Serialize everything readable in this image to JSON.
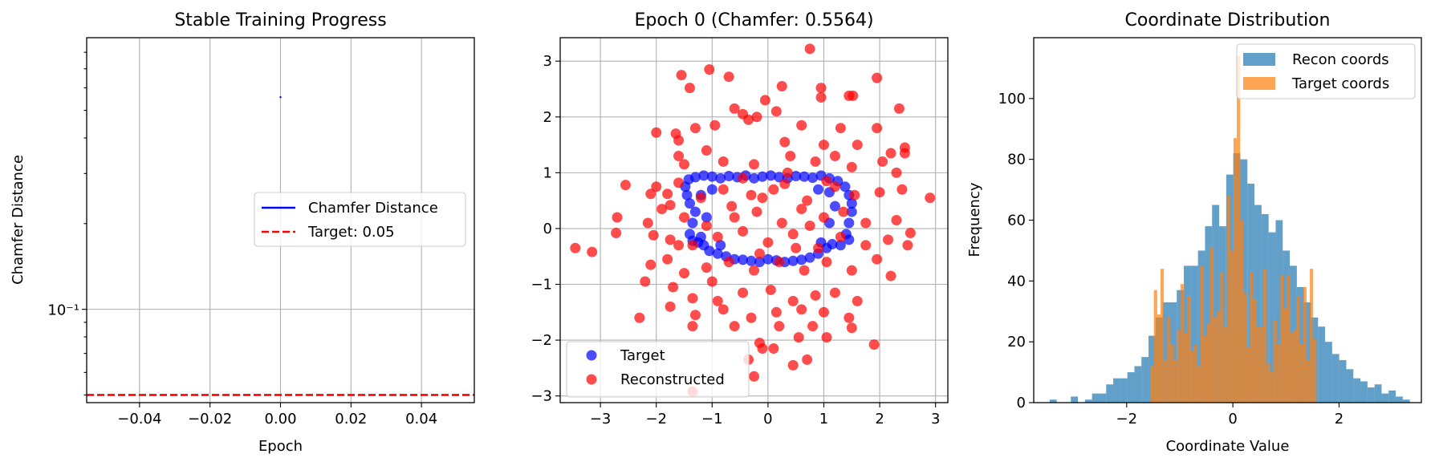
{
  "chart_data": [
    {
      "type": "line",
      "title": "Stable Training Progress",
      "xlabel": "Epoch",
      "ylabel": "Chamfer Distance",
      "xlim": [
        -0.055,
        0.055
      ],
      "ylim": [
        0.047,
        0.9
      ],
      "yscale": "log",
      "xticks": [
        -0.04,
        -0.02,
        0.0,
        0.02,
        0.04
      ],
      "xtick_labels": [
        "−0.04",
        "−0.02",
        "0.00",
        "0.02",
        "0.04"
      ],
      "ytick_major": [
        0.1
      ],
      "ytick_major_labels": [
        "10⁻¹"
      ],
      "grid": true,
      "legend_position": "center-right",
      "series": [
        {
          "name": "Chamfer Distance",
          "color": "#0000ff",
          "style": "solid",
          "x": [
            0
          ],
          "y": [
            0.5564
          ]
        },
        {
          "name": "Target: 0.05",
          "color": "#ff0000",
          "style": "dashed",
          "hline": 0.05
        }
      ]
    },
    {
      "type": "scatter",
      "title": "Epoch 0 (Chamfer: 0.5564)",
      "xlim": [
        -3.72,
        3.22
      ],
      "ylim": [
        -3.12,
        3.42
      ],
      "xticks": [
        -3,
        -2,
        -1,
        0,
        1,
        2,
        3
      ],
      "xtick_labels": [
        "−3",
        "−2",
        "−1",
        "0",
        "1",
        "2",
        "3"
      ],
      "yticks": [
        -3,
        -2,
        -1,
        0,
        1,
        2,
        3
      ],
      "ytick_labels": [
        "−3",
        "−2",
        "−1",
        "0",
        "1",
        "2",
        "3"
      ],
      "grid": true,
      "legend_position": "lower-left",
      "series": [
        {
          "name": "Target",
          "color": "#0000ff",
          "points": [
            [
              -1.42,
              0.88
            ],
            [
              -1.3,
              0.92
            ],
            [
              -1.15,
              0.95
            ],
            [
              -1.0,
              0.93
            ],
            [
              -0.85,
              0.9
            ],
            [
              -0.7,
              0.94
            ],
            [
              -0.55,
              0.92
            ],
            [
              -0.4,
              0.95
            ],
            [
              -0.25,
              0.9
            ],
            [
              -0.1,
              0.93
            ],
            [
              0.05,
              0.95
            ],
            [
              0.2,
              0.92
            ],
            [
              0.35,
              0.9
            ],
            [
              0.5,
              0.94
            ],
            [
              0.65,
              0.93
            ],
            [
              0.8,
              0.91
            ],
            [
              0.95,
              0.95
            ],
            [
              1.1,
              0.9
            ],
            [
              1.25,
              0.85
            ],
            [
              1.38,
              0.75
            ],
            [
              1.45,
              0.6
            ],
            [
              1.5,
              0.45
            ],
            [
              1.5,
              0.3
            ],
            [
              1.45,
              0.1
            ],
            [
              1.4,
              -0.1
            ],
            [
              1.45,
              -0.2
            ],
            [
              1.3,
              -0.3
            ],
            [
              1.15,
              -0.28
            ],
            [
              1.05,
              -0.35
            ],
            [
              0.9,
              -0.45
            ],
            [
              0.75,
              -0.52
            ],
            [
              0.6,
              -0.56
            ],
            [
              0.45,
              -0.58
            ],
            [
              0.3,
              -0.6
            ],
            [
              0.15,
              -0.57
            ],
            [
              0.0,
              -0.55
            ],
            [
              -0.15,
              -0.6
            ],
            [
              -0.3,
              -0.58
            ],
            [
              -0.45,
              -0.56
            ],
            [
              -0.6,
              -0.55
            ],
            [
              -0.75,
              -0.5
            ],
            [
              -0.9,
              -0.45
            ],
            [
              -1.05,
              -0.4
            ],
            [
              -1.15,
              -0.3
            ],
            [
              -1.25,
              -0.25
            ],
            [
              -1.35,
              -0.22
            ],
            [
              -1.4,
              -0.1
            ],
            [
              -1.35,
              0.1
            ],
            [
              -1.3,
              0.3
            ],
            [
              -1.4,
              0.45
            ],
            [
              -1.45,
              0.6
            ],
            [
              -1.48,
              0.75
            ],
            [
              -1.2,
              0.6
            ],
            [
              -1.0,
              0.7
            ],
            [
              0.9,
              0.7
            ],
            [
              1.1,
              0.65
            ],
            [
              1.2,
              0.4
            ],
            [
              1.1,
              0.1
            ],
            [
              -1.1,
              0.2
            ],
            [
              -1.2,
              -0.15
            ],
            [
              0.95,
              -0.25
            ],
            [
              -0.85,
              -0.3
            ]
          ]
        },
        {
          "name": "Reconstructed",
          "color": "#ff0000",
          "points": [
            [
              0.75,
              3.22
            ],
            [
              -1.55,
              2.75
            ],
            [
              -1.05,
              2.85
            ],
            [
              -1.4,
              2.52
            ],
            [
              -0.7,
              2.72
            ],
            [
              0.25,
              2.55
            ],
            [
              0.95,
              2.52
            ],
            [
              1.45,
              2.38
            ],
            [
              1.52,
              2.38
            ],
            [
              1.95,
              2.7
            ],
            [
              2.35,
              2.15
            ],
            [
              -0.05,
              2.3
            ],
            [
              -0.6,
              2.15
            ],
            [
              -0.45,
              2.05
            ],
            [
              -0.2,
              2.0
            ],
            [
              0.15,
              2.1
            ],
            [
              0.6,
              1.85
            ],
            [
              0.95,
              2.35
            ],
            [
              1.3,
              1.8
            ],
            [
              -1.65,
              1.7
            ],
            [
              -1.6,
              1.58
            ],
            [
              -1.3,
              1.8
            ],
            [
              -0.95,
              1.85
            ],
            [
              -0.35,
              1.95
            ],
            [
              0.3,
              1.55
            ],
            [
              1.0,
              1.5
            ],
            [
              1.6,
              1.5
            ],
            [
              1.95,
              1.8
            ],
            [
              2.2,
              1.35
            ],
            [
              2.45,
              1.45
            ],
            [
              2.45,
              1.35
            ],
            [
              -2.0,
              1.72
            ],
            [
              -1.6,
              1.3
            ],
            [
              -1.5,
              1.15
            ],
            [
              -1.1,
              1.4
            ],
            [
              -0.8,
              1.2
            ],
            [
              -0.25,
              1.15
            ],
            [
              0.4,
              1.3
            ],
            [
              0.85,
              1.2
            ],
            [
              1.2,
              1.3
            ],
            [
              1.5,
              1.1
            ],
            [
              2.05,
              1.2
            ],
            [
              2.3,
              1.0
            ],
            [
              -2.55,
              0.78
            ],
            [
              -2.1,
              0.62
            ],
            [
              -2.0,
              0.75
            ],
            [
              -1.8,
              0.62
            ],
            [
              -1.6,
              0.82
            ],
            [
              -1.75,
              0.42
            ],
            [
              -1.2,
              0.55
            ],
            [
              -0.8,
              0.7
            ],
            [
              -0.45,
              0.9
            ],
            [
              -0.1,
              0.55
            ],
            [
              0.3,
              0.8
            ],
            [
              0.7,
              0.5
            ],
            [
              1.05,
              0.85
            ],
            [
              1.55,
              0.6
            ],
            [
              2.0,
              0.65
            ],
            [
              2.4,
              0.7
            ],
            [
              -2.7,
              0.2
            ],
            [
              -2.15,
              0.1
            ],
            [
              -1.9,
              0.35
            ],
            [
              -1.5,
              0.2
            ],
            [
              -1.1,
              0.05
            ],
            [
              -0.65,
              0.4
            ],
            [
              -0.2,
              0.3
            ],
            [
              0.25,
              0.1
            ],
            [
              0.6,
              0.35
            ],
            [
              1.0,
              0.2
            ],
            [
              1.35,
              0.3
            ],
            [
              1.75,
              0.1
            ],
            [
              2.3,
              0.15
            ],
            [
              2.55,
              -0.08
            ],
            [
              2.9,
              0.55
            ],
            [
              -2.72,
              -0.08
            ],
            [
              -2.05,
              -0.12
            ],
            [
              -1.75,
              -0.2
            ],
            [
              -1.35,
              -0.3
            ],
            [
              -0.9,
              -0.15
            ],
            [
              -0.45,
              -0.05
            ],
            [
              0.0,
              -0.25
            ],
            [
              0.45,
              -0.1
            ],
            [
              0.9,
              -0.35
            ],
            [
              1.3,
              -0.15
            ],
            [
              1.75,
              -0.3
            ],
            [
              2.15,
              -0.2
            ],
            [
              2.5,
              -0.3
            ],
            [
              -3.45,
              -0.35
            ],
            [
              -3.15,
              -0.42
            ],
            [
              -2.1,
              -0.65
            ],
            [
              -1.8,
              -0.55
            ],
            [
              -1.5,
              -0.8
            ],
            [
              -1.1,
              -0.7
            ],
            [
              -0.7,
              -0.6
            ],
            [
              -0.25,
              -0.75
            ],
            [
              0.2,
              -0.6
            ],
            [
              0.65,
              -0.75
            ],
            [
              1.05,
              -0.6
            ],
            [
              1.5,
              -0.75
            ],
            [
              1.95,
              -0.55
            ],
            [
              2.2,
              -0.85
            ],
            [
              -2.2,
              -0.95
            ],
            [
              -1.7,
              -1.05
            ],
            [
              -1.35,
              -1.25
            ],
            [
              -0.9,
              -1.3
            ],
            [
              -0.45,
              -1.15
            ],
            [
              0.05,
              -1.1
            ],
            [
              0.45,
              -1.3
            ],
            [
              0.85,
              -1.2
            ],
            [
              1.2,
              -1.15
            ],
            [
              1.6,
              -1.3
            ],
            [
              -2.3,
              -1.6
            ],
            [
              -1.75,
              -1.4
            ],
            [
              -1.3,
              -1.55
            ],
            [
              -0.8,
              -1.45
            ],
            [
              -0.3,
              -1.6
            ],
            [
              0.15,
              -1.5
            ],
            [
              0.6,
              -1.45
            ],
            [
              1.0,
              -1.5
            ],
            [
              1.45,
              -1.6
            ],
            [
              -1.35,
              -1.75
            ],
            [
              -0.6,
              -1.75
            ],
            [
              0.2,
              -1.75
            ],
            [
              0.55,
              -1.95
            ],
            [
              0.8,
              -1.75
            ],
            [
              1.05,
              -1.95
            ],
            [
              1.5,
              -1.78
            ],
            [
              1.9,
              -2.08
            ],
            [
              -0.15,
              -2.05
            ],
            [
              0.1,
              -2.15
            ],
            [
              -0.1,
              -2.15
            ],
            [
              -0.35,
              -2.35
            ],
            [
              0.45,
              -2.45
            ],
            [
              0.7,
              -2.35
            ],
            [
              -0.25,
              -2.65
            ],
            [
              -1.35,
              -2.92
            ],
            [
              -1.6,
              -0.3
            ],
            [
              -0.6,
              0.2
            ],
            [
              0.1,
              0.7
            ],
            [
              0.5,
              -0.35
            ],
            [
              -0.3,
              0.6
            ],
            [
              1.2,
              0.75
            ],
            [
              -1.0,
              -0.95
            ],
            [
              0.35,
              1.0
            ],
            [
              -0.15,
              -0.45
            ],
            [
              0.75,
              0.05
            ]
          ]
        }
      ]
    },
    {
      "type": "bar",
      "subtype": "histogram",
      "title": "Coordinate Distribution",
      "xlabel": "Coordinate Value",
      "ylabel": "Frequency",
      "xlim": [
        -3.75,
        3.55
      ],
      "ylim": [
        0,
        120
      ],
      "xticks": [
        -2,
        0,
        2
      ],
      "xtick_labels": [
        "−2",
        "0",
        "2"
      ],
      "yticks": [
        0,
        20,
        40,
        60,
        80,
        100
      ],
      "ytick_labels": [
        "0",
        "20",
        "40",
        "60",
        "80",
        "100"
      ],
      "grid": false,
      "legend_position": "upper-right",
      "series": [
        {
          "name": "Recon coords",
          "color": "#1f77b4",
          "opacity": 0.7,
          "bin_start": -3.45,
          "bin_width": 0.133,
          "values": [
            1,
            0,
            0,
            2,
            0,
            1,
            3,
            3,
            6,
            8,
            8,
            10,
            12,
            15,
            22,
            28,
            33,
            33,
            37,
            45,
            45,
            50,
            58,
            65,
            58,
            75,
            82,
            80,
            72,
            65,
            62,
            56,
            60,
            50,
            45,
            38,
            33,
            28,
            25,
            20,
            16,
            14,
            11,
            8,
            7,
            5,
            6,
            3,
            4,
            2,
            1
          ]
        },
        {
          "name": "Target coords",
          "color": "#ff7f0e",
          "opacity": 0.7,
          "bin_start": -1.55,
          "bin_width": 0.0625,
          "values": [
            12,
            37,
            29,
            44,
            14,
            28,
            19,
            14,
            24,
            39,
            23,
            35,
            17,
            19,
            12,
            45,
            22,
            26,
            51,
            28,
            30,
            43,
            25,
            68,
            50,
            87,
            114,
            60,
            36,
            18,
            43,
            34,
            25,
            25,
            44,
            13,
            10,
            27,
            19,
            42,
            31,
            42,
            23,
            24,
            35,
            19,
            38,
            14,
            44,
            21
          ]
        }
      ]
    }
  ]
}
